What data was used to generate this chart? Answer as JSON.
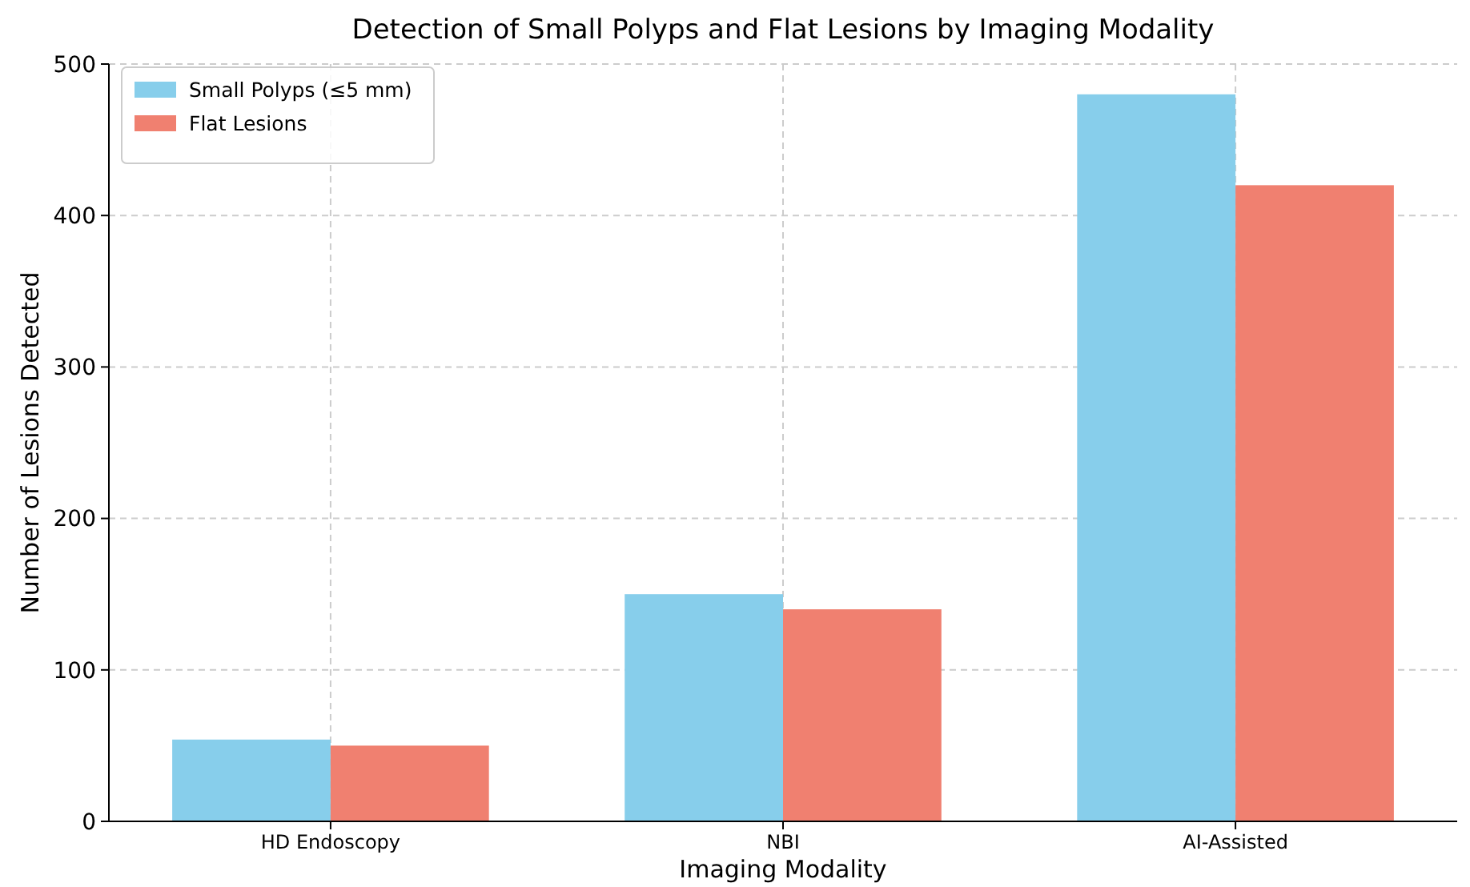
{
  "chart_data": {
    "type": "bar",
    "title": "Detection of Small Polyps and Flat Lesions by Imaging Modality",
    "xlabel": "Imaging Modality",
    "ylabel": "Number of Lesions Detected",
    "categories": [
      "HD Endoscopy",
      "NBI",
      "AI-Assisted"
    ],
    "series": [
      {
        "name": "Small Polyps (≤5 mm)",
        "color": "#87ceeb",
        "values": [
          54,
          150,
          480
        ]
      },
      {
        "name": "Flat Lesions",
        "color": "#f08070",
        "values": [
          50,
          140,
          420
        ]
      }
    ],
    "ylim": [
      0,
      500
    ],
    "yticks": [
      0,
      100,
      200,
      300,
      400,
      500
    ],
    "grid": true,
    "legend": "top left"
  }
}
